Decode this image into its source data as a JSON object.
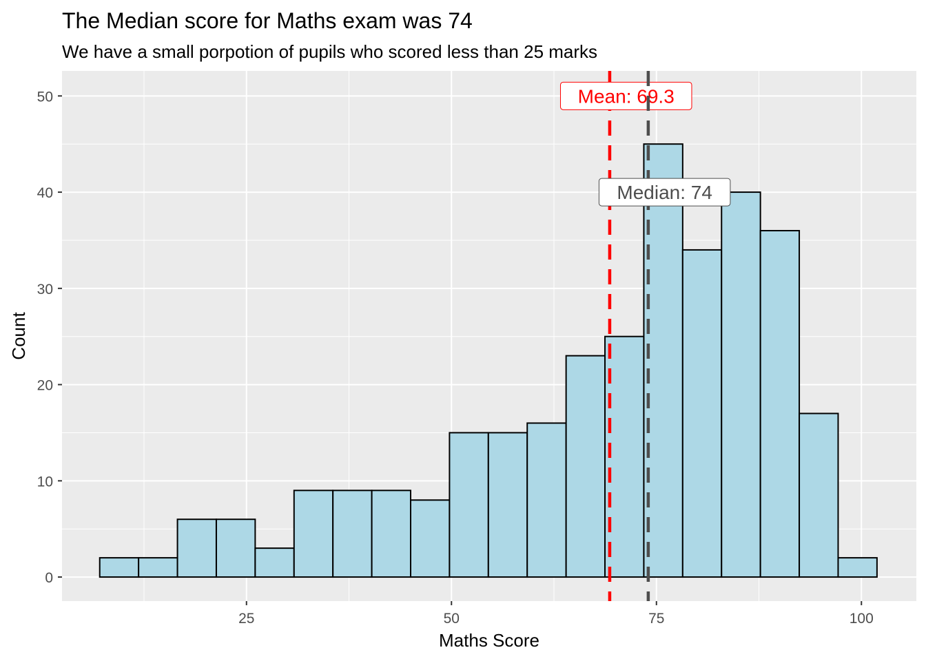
{
  "chart_data": {
    "type": "bar",
    "title": "The Median score for Maths exam was 74",
    "subtitle": "We have a small porpotion of pupils who scored less than 25 marks",
    "xlabel": "Maths Score",
    "ylabel": "Count",
    "xlim": [
      2.5,
      106.7
    ],
    "ylim": [
      -2.5,
      52.6
    ],
    "x_ticks": [
      25,
      50,
      75,
      100
    ],
    "x_tick_labels": [
      "25",
      "50",
      "75",
      "100"
    ],
    "y_ticks": [
      0,
      10,
      20,
      30,
      40,
      50
    ],
    "y_tick_labels": [
      "0",
      "10",
      "20",
      "30",
      "40",
      "50"
    ],
    "grid": true,
    "bin_start": 7.1,
    "bin_width": 4.74,
    "values": [
      2,
      2,
      6,
      6,
      3,
      9,
      9,
      9,
      8,
      15,
      15,
      16,
      23,
      25,
      45,
      34,
      40,
      36,
      17,
      2
    ],
    "bar_fill": "#add8e6",
    "bar_outline": "#000000",
    "panel_bg": "#ebebeb",
    "reference_lines": [
      {
        "name": "mean",
        "x": 69.3,
        "color": "#ff0000",
        "label": "Mean:  69.3",
        "label_x": 71.3,
        "label_y": 50
      },
      {
        "name": "median",
        "x": 74,
        "color": "#4d4d4d",
        "label": "Median:  74",
        "label_x": 76,
        "label_y": 40
      }
    ]
  }
}
